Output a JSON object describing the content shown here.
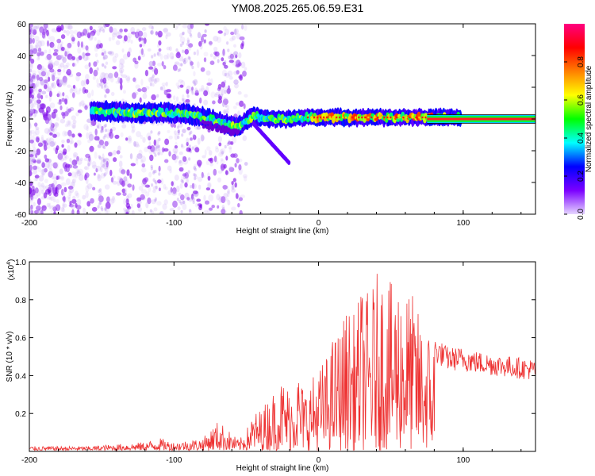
{
  "title": "YM08.2025.265.06.59.E31",
  "chart_data": [
    {
      "type": "heatmap",
      "xlabel": "Height of straight line (km)",
      "ylabel": "Frequency (Hz)",
      "xlim": [
        -200,
        150
      ],
      "ylim": [
        -60,
        60
      ],
      "xticks": [
        -200,
        -100,
        0,
        100
      ],
      "yticks": [
        -60,
        -40,
        -20,
        0,
        20,
        40,
        60
      ],
      "colorbar": {
        "label": "Normalized spectral amplitude",
        "range": [
          0.0,
          1.0
        ],
        "ticks": [
          "0.0",
          "0.2",
          "0.4",
          "0.6",
          "0.8"
        ],
        "colormap": [
          "#e6d6ff",
          "#7b00ff",
          "#0000ff",
          "#00ffff",
          "#00ff00",
          "#ffff00",
          "#ff8000",
          "#ff0000",
          "#ff0080"
        ]
      },
      "ridge": {
        "description_points_x_km": [
          -155,
          -130,
          -110,
          -90,
          -75,
          -65,
          -55,
          -45,
          -35,
          -25,
          -10,
          0,
          20,
          40,
          60,
          75,
          100,
          150
        ],
        "frequency_hz": [
          5,
          4,
          4,
          3,
          0,
          -3,
          -5,
          2,
          0,
          0,
          1,
          1,
          1,
          1,
          1,
          1,
          1,
          1
        ]
      }
    },
    {
      "type": "line",
      "xlabel": "Height of straight line (km)",
      "ylabel": "SNR (10 * v/v)",
      "scale_label": "(x10",
      "scale_exp": "4",
      "xlim": [
        -200,
        150
      ],
      "ylim": [
        0,
        1.0
      ],
      "xticks": [
        -200,
        -100,
        0,
        100
      ],
      "yticks": [
        "0.2",
        "0.4",
        "0.6",
        "0.8",
        "1.0"
      ],
      "series": [
        {
          "color": "#ee3333",
          "x": [
            -200,
            -180,
            -160,
            -140,
            -120,
            -110,
            -100,
            -90,
            -80,
            -75,
            -70,
            -65,
            -60,
            -55,
            -50,
            -45,
            -40,
            -35,
            -30,
            -25,
            -20,
            -15,
            -10,
            -5,
            0,
            5,
            10,
            15,
            20,
            25,
            30,
            35,
            40,
            45,
            50,
            55,
            60,
            65,
            70,
            75,
            80,
            90,
            100,
            110,
            120,
            130,
            140,
            150
          ],
          "y": [
            0.02,
            0.02,
            0.02,
            0.03,
            0.04,
            0.06,
            0.04,
            0.05,
            0.06,
            0.1,
            0.14,
            0.12,
            0.08,
            0.05,
            0.1,
            0.18,
            0.2,
            0.25,
            0.3,
            0.35,
            0.3,
            0.4,
            0.3,
            0.35,
            0.4,
            0.45,
            0.55,
            0.6,
            0.7,
            0.65,
            0.8,
            0.75,
            0.85,
            0.9,
            0.8,
            0.85,
            0.8,
            0.75,
            0.65,
            0.6,
            0.55,
            0.5,
            0.5,
            0.48,
            0.47,
            0.46,
            0.45,
            0.44
          ]
        }
      ]
    }
  ]
}
